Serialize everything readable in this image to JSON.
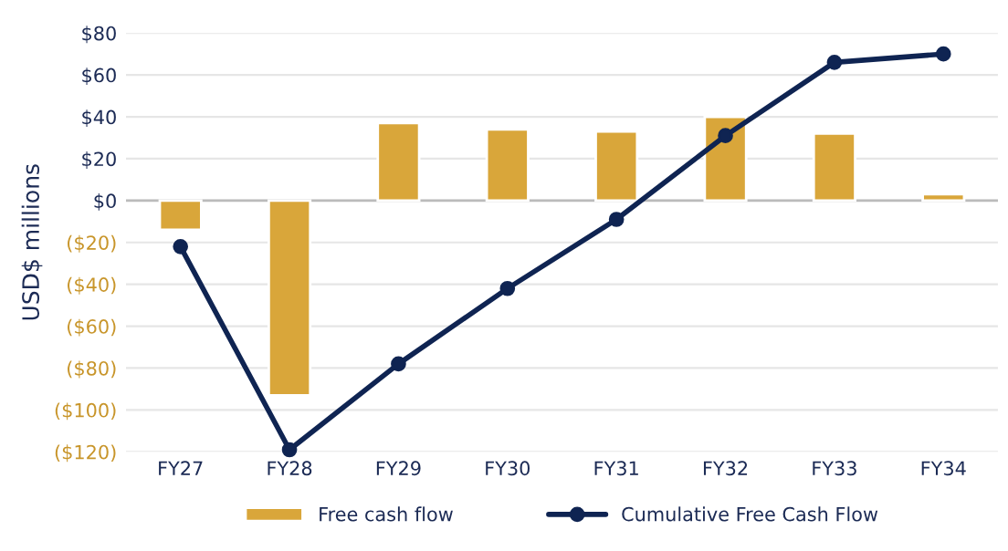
{
  "chart_data": {
    "type": "bar",
    "ylabel": "USD$ millions",
    "categories": [
      "FY27",
      "FY28",
      "FY29",
      "FY30",
      "FY31",
      "FY32",
      "FY33",
      "FY34"
    ],
    "series": [
      {
        "name": "Free cash flow",
        "color": "#d9a63a",
        "values": [
          -14,
          -93,
          37,
          34,
          33,
          40,
          32,
          3
        ]
      },
      {
        "name": "Cumulative Free Cash Flow",
        "type": "line",
        "color": "#0f2452",
        "values": [
          -22,
          -119,
          -78,
          -42,
          -9,
          31,
          66,
          70
        ]
      }
    ],
    "ylim": [
      -120,
      80
    ],
    "yticks": [
      {
        "value": 80,
        "label": "$80"
      },
      {
        "value": 60,
        "label": "$60"
      },
      {
        "value": 40,
        "label": "$40"
      },
      {
        "value": 20,
        "label": "$20"
      },
      {
        "value": 0,
        "label": "$0"
      },
      {
        "value": -20,
        "label": "($20)"
      },
      {
        "value": -40,
        "label": "($40)"
      },
      {
        "value": -60,
        "label": "($60)"
      },
      {
        "value": -80,
        "label": "($80)"
      },
      {
        "value": -100,
        "label": "($100)"
      },
      {
        "value": -120,
        "label": "($120)"
      }
    ],
    "grid": "y",
    "legend": "bottom",
    "marker": "circle",
    "line_style": "solid"
  }
}
